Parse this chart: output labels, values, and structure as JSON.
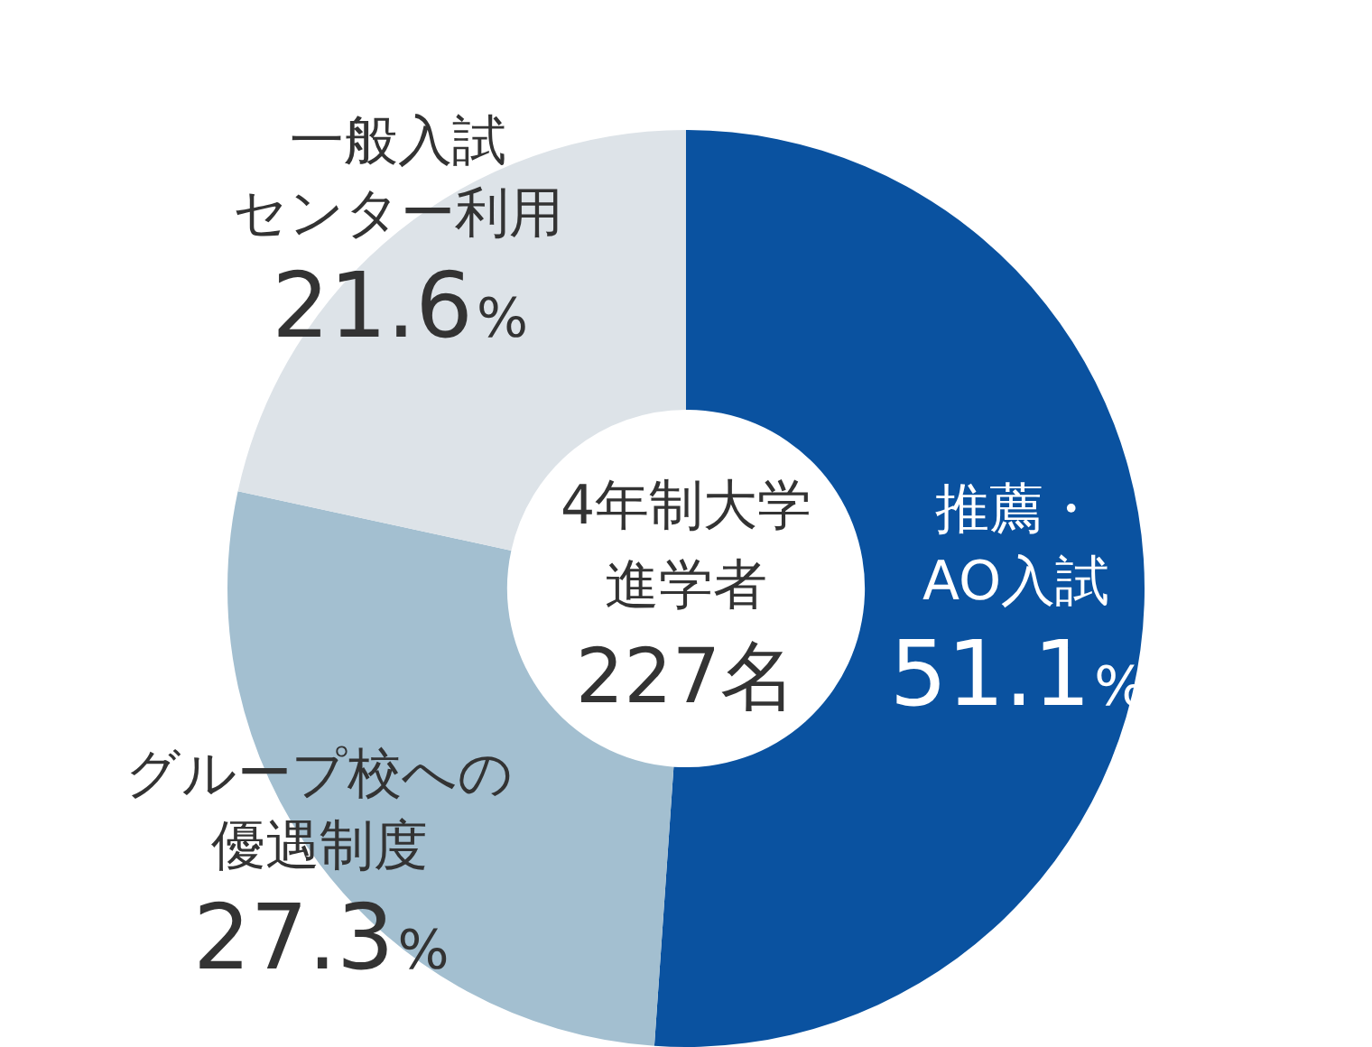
{
  "chart_data": {
    "type": "donut",
    "categories": [
      "推薦・AO入試",
      "グループ校への優遇制度",
      "一般入試センター利用"
    ],
    "values": [
      51.1,
      27.3,
      21.6
    ],
    "colors": [
      "#0a52a0",
      "#a3bfd0",
      "#dde3e8"
    ],
    "value_labels": [
      "51.1%",
      "27.3%",
      "21.6%"
    ],
    "annotations": [
      "4年制大学",
      "進学者",
      "227名"
    ],
    "legend": false
  }
}
